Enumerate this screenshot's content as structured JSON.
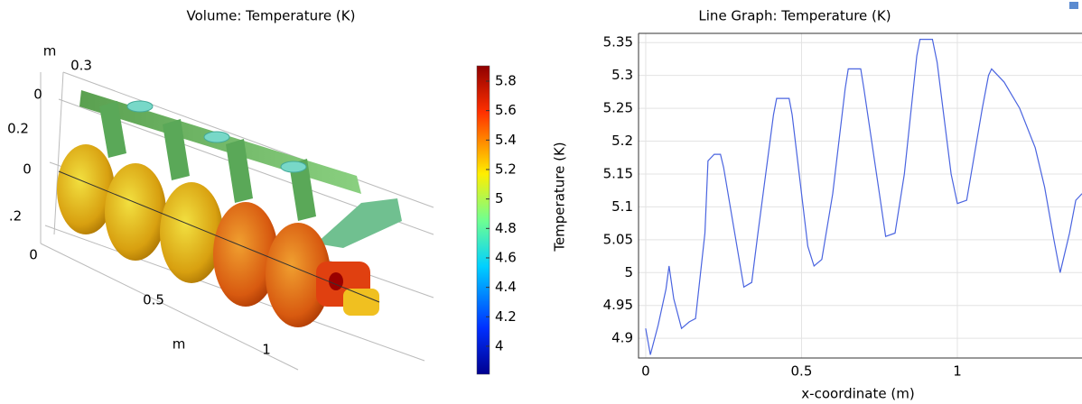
{
  "chart_data": [
    {
      "type": "volume",
      "title": "Volume: Temperature (K)",
      "axis_texts": [
        "m",
        "0.3",
        "0",
        "0.2",
        "0",
        ".2",
        "0",
        "0.5",
        "m",
        "1"
      ],
      "colorbar_label": "Temperature (K)",
      "clim": [
        3.81,
        5.904
      ],
      "cticks": [
        4,
        4.2,
        4.4,
        4.6,
        4.8,
        5,
        5.2,
        5.4,
        5.6,
        5.8
      ]
    },
    {
      "type": "line",
      "title": "Line Graph: Temperature (K)",
      "xlabel": "x-coordinate (m)",
      "ylabel": "Temperature (K)",
      "x": [
        0,
        0.015,
        0.04,
        0.065,
        0.075,
        0.09,
        0.115,
        0.14,
        0.16,
        0.19,
        0.2,
        0.22,
        0.24,
        0.25,
        0.3,
        0.315,
        0.34,
        0.36,
        0.41,
        0.42,
        0.46,
        0.47,
        0.52,
        0.54,
        0.565,
        0.6,
        0.64,
        0.65,
        0.69,
        0.7,
        0.75,
        0.77,
        0.8,
        0.83,
        0.87,
        0.88,
        0.92,
        0.935,
        0.98,
        1.0,
        1.03,
        1.08,
        1.1,
        1.11,
        1.15,
        1.2,
        1.25,
        1.28,
        1.31,
        1.33,
        1.36,
        1.38,
        1.4
      ],
      "values": [
        4.915,
        4.875,
        4.92,
        4.975,
        5.01,
        4.96,
        4.915,
        4.925,
        4.93,
        5.06,
        5.17,
        5.18,
        5.18,
        5.16,
        5.02,
        4.978,
        4.985,
        5.06,
        5.24,
        5.265,
        5.265,
        5.24,
        5.04,
        5.01,
        5.02,
        5.12,
        5.28,
        5.31,
        5.31,
        5.28,
        5.12,
        5.055,
        5.06,
        5.15,
        5.33,
        5.355,
        5.355,
        5.32,
        5.15,
        5.105,
        5.11,
        5.25,
        5.3,
        5.31,
        5.29,
        5.25,
        5.19,
        5.13,
        5.05,
        5.0,
        5.06,
        5.11,
        5.12
      ],
      "color": "#4a64e0",
      "xlim": [
        -0.023,
        1.4
      ],
      "ylim": [
        4.87,
        5.364
      ],
      "xticks": [
        0,
        0.5,
        1
      ],
      "yticks": [
        4.9,
        4.95,
        5,
        5.05,
        5.1,
        5.15,
        5.2,
        5.25,
        5.3,
        5.35
      ],
      "grid": true
    }
  ]
}
